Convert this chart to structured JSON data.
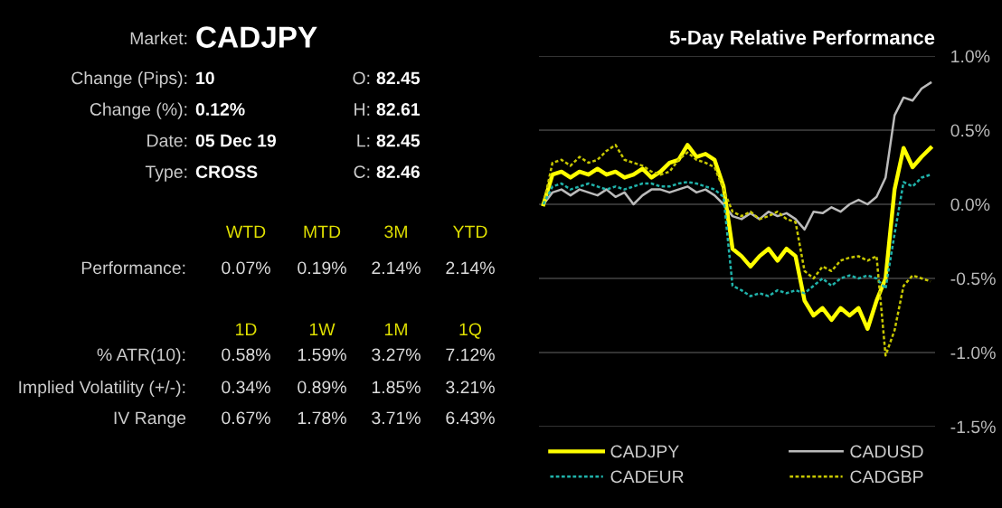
{
  "chart_data": [
    {
      "type": "other",
      "annotations": [
        "Market:",
        "CADJPY",
        "Change (Pips):",
        "10",
        "O:",
        "82.45",
        "Change (%):",
        "0.12%",
        "H:",
        "82.61",
        "Date:",
        "05 Dec 19",
        "L:",
        "82.45",
        "Type:",
        "CROSS",
        "C:",
        "82.46",
        "WTD",
        "MTD",
        "3M",
        "YTD",
        "Performance:",
        "0.07%",
        "0.19%",
        "2.14%",
        "2.14%",
        "1D",
        "1W",
        "1M",
        "1Q",
        "% ATR(10):",
        "0.58%",
        "1.59%",
        "3.27%",
        "7.12%",
        "Implied Volatility (+/-):",
        "0.34%",
        "0.89%",
        "1.85%",
        "3.21%",
        "IV Range",
        "0.67%",
        "1.78%",
        "3.71%",
        "6.43%"
      ]
    },
    {
      "type": "line",
      "title": "5-Day Relative Performance",
      "categories": [
        null,
        null,
        null,
        null,
        null,
        null,
        null,
        null,
        null,
        null,
        null,
        null,
        null,
        null,
        null,
        null,
        null,
        null,
        null,
        null,
        null,
        null,
        null,
        null,
        null,
        null,
        null,
        null,
        null,
        null,
        null,
        null,
        null,
        null,
        null,
        null,
        null,
        null,
        null,
        null,
        null,
        null,
        null,
        null
      ],
      "series": [
        {
          "name": "CADGBP",
          "color": "#c8c800",
          "line_style": "dotted",
          "values": [
            0,
            0.28,
            0.3,
            0.26,
            0.32,
            0.28,
            0.3,
            0.36,
            0.4,
            0.3,
            0.28,
            0.26,
            0.22,
            0.2,
            0.22,
            0.3,
            0.35,
            0.3,
            0.28,
            0.25,
            0.1,
            -0.05,
            -0.08,
            -0.05,
            -0.1,
            -0.08,
            -0.05,
            -0.1,
            -0.12,
            -0.45,
            -0.5,
            -0.42,
            -0.45,
            -0.38,
            -0.36,
            -0.35,
            -0.38,
            -0.35,
            -1.02,
            -0.85,
            -0.55,
            -0.48,
            -0.5,
            -0.52
          ]
        },
        {
          "name": "CADEUR",
          "color": "#20b2aa",
          "line_style": "dotted",
          "values": [
            0,
            0.12,
            0.14,
            0.1,
            0.12,
            0.14,
            0.12,
            0.1,
            0.12,
            0.1,
            0.12,
            0.14,
            0.14,
            0.12,
            0.12,
            0.14,
            0.15,
            0.14,
            0.12,
            0.1,
            0.05,
            -0.55,
            -0.58,
            -0.62,
            -0.6,
            -0.62,
            -0.58,
            -0.6,
            -0.58,
            -0.6,
            -0.55,
            -0.5,
            -0.55,
            -0.5,
            -0.48,
            -0.5,
            -0.48,
            -0.5,
            -0.57,
            -0.2,
            0.15,
            0.12,
            0.18,
            0.2
          ]
        },
        {
          "name": "CADUSD",
          "color": "#bbbbbb",
          "line_style": "solid",
          "values": [
            0,
            0.08,
            0.1,
            0.06,
            0.1,
            0.08,
            0.06,
            0.1,
            0.05,
            0.08,
            0.0,
            0.06,
            0.1,
            0.1,
            0.08,
            0.1,
            0.12,
            0.08,
            0.1,
            0.06,
            0.0,
            -0.08,
            -0.1,
            -0.06,
            -0.1,
            -0.05,
            -0.08,
            -0.06,
            -0.1,
            -0.17,
            -0.05,
            -0.06,
            -0.02,
            -0.05,
            0.0,
            0.03,
            0.0,
            0.05,
            0.18,
            0.6,
            0.72,
            0.7,
            0.78,
            0.82
          ]
        },
        {
          "name": "CADJPY",
          "color": "#ffff00",
          "line_style": "solid",
          "values": [
            0,
            0.2,
            0.22,
            0.18,
            0.22,
            0.2,
            0.24,
            0.2,
            0.22,
            0.18,
            0.2,
            0.24,
            0.18,
            0.22,
            0.28,
            0.3,
            0.4,
            0.32,
            0.34,
            0.3,
            0.12,
            -0.3,
            -0.35,
            -0.42,
            -0.35,
            -0.3,
            -0.38,
            -0.3,
            -0.35,
            -0.65,
            -0.75,
            -0.7,
            -0.78,
            -0.7,
            -0.75,
            -0.7,
            -0.84,
            -0.65,
            -0.5,
            0.1,
            0.38,
            0.25,
            0.32,
            0.38
          ]
        }
      ],
      "ylim": [
        -1.5,
        1.0
      ],
      "yticks": [
        {
          "value": 1.0,
          "label": "1.0%"
        },
        {
          "value": 0.5,
          "label": "0.5%"
        },
        {
          "value": 0.0,
          "label": "0.0%"
        },
        {
          "value": -0.5,
          "label": "-0.5%"
        },
        {
          "value": -1.0,
          "label": "-1.0%"
        },
        {
          "value": -1.5,
          "label": "-1.5%"
        }
      ],
      "tick_labels": "y",
      "grid": "y",
      "legend": "bottom",
      "marker": "none"
    }
  ]
}
